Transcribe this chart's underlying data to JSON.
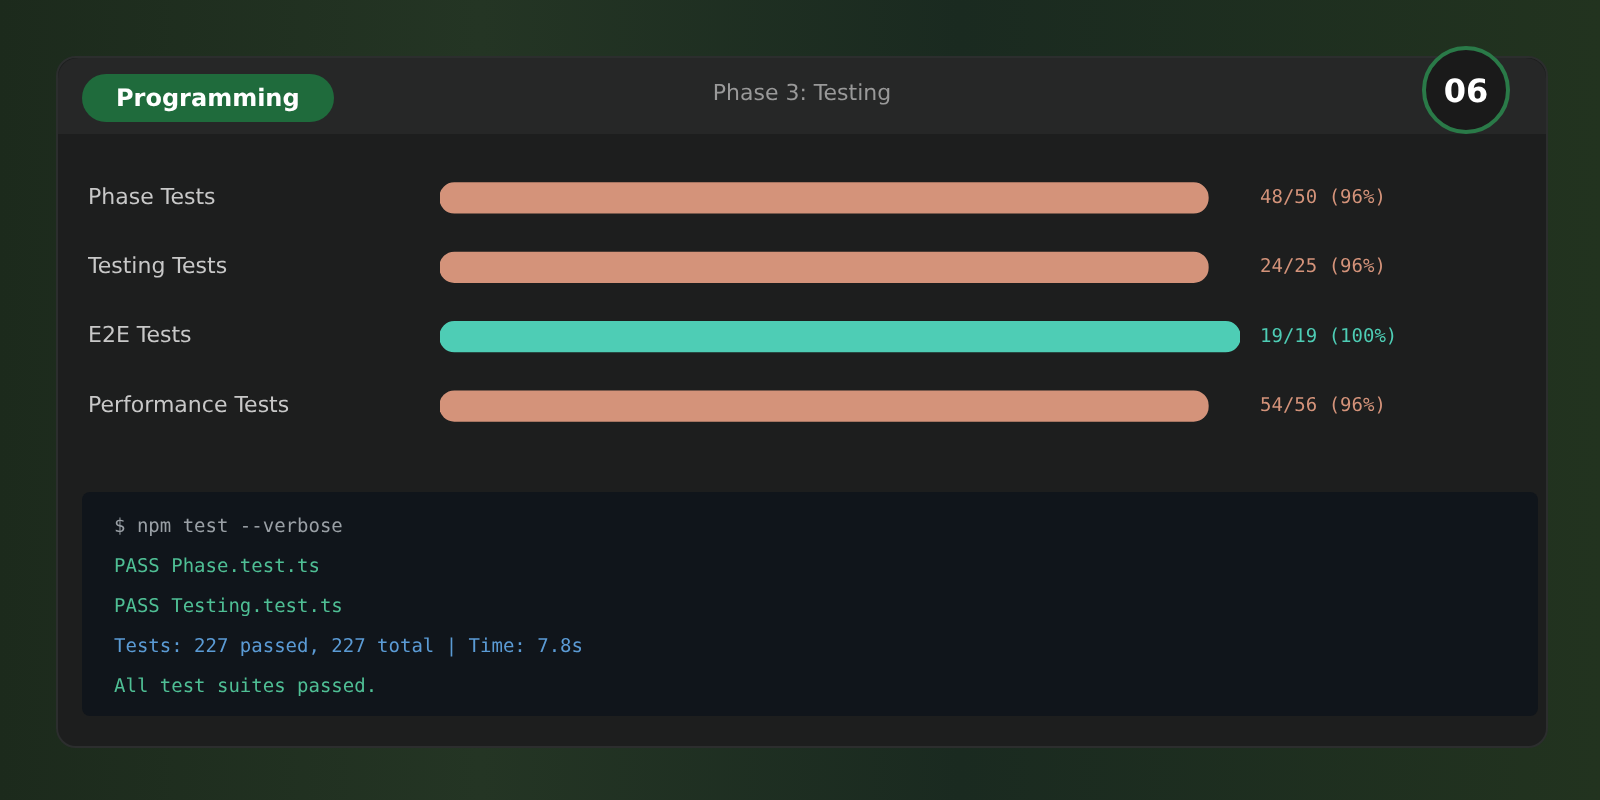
{
  "chart_data": {
    "type": "bar",
    "orientation": "horizontal",
    "title": "Phase 3: Testing",
    "categories": [
      "Phase Tests",
      "Testing Tests",
      "E2E Tests",
      "Performance Tests"
    ],
    "values": [
      96,
      96,
      100,
      96
    ],
    "colors": [
      "#d4937a",
      "#d4937a",
      "#4ecdb5",
      "#d4937a"
    ],
    "value_labels": [
      "48/50 (96%)",
      "24/25 (96%)",
      "19/19 (100%)",
      "54/56 (96%)"
    ],
    "xlim": [
      0,
      100
    ],
    "tick_labels": false,
    "annotations": [
      "Programming",
      "06",
      "$ npm test --verbose",
      "PASS Phase.test.ts",
      "PASS Testing.test.ts",
      "Tests: 227 passed, 227 total | Time: 7.8s",
      "All test suites passed."
    ]
  }
}
